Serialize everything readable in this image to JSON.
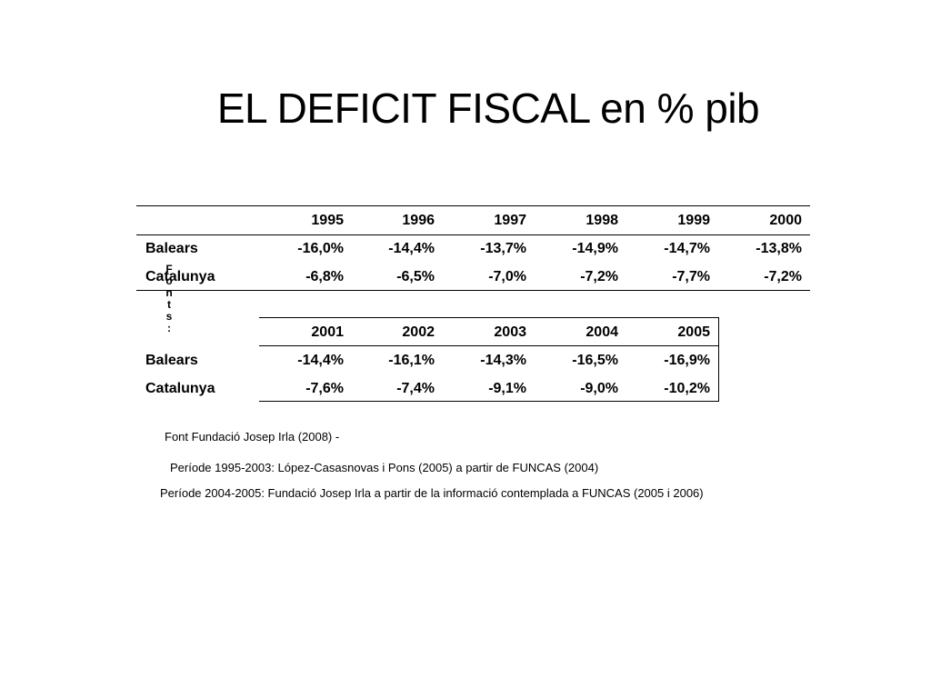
{
  "title": "EL DEFICIT FISCAL en % pib",
  "table1": {
    "years": [
      "1995",
      "1996",
      "1997",
      "1998",
      "1999",
      "2000"
    ],
    "rows": [
      {
        "label": "Balears",
        "values": [
          "-16,0%",
          "-14,4%",
          "-13,7%",
          "-14,9%",
          "-14,7%",
          "-13,8%"
        ]
      },
      {
        "label": "Catalunya",
        "values": [
          "-6,8%",
          "-6,5%",
          "-7,0%",
          "-7,2%",
          "-7,7%",
          "-7,2%"
        ]
      }
    ]
  },
  "table2": {
    "years": [
      "2001",
      "2002",
      "2003",
      "2004",
      "2005"
    ],
    "rows": [
      {
        "label": "Balears",
        "values": [
          "-14,4%",
          "-16,1%",
          "-14,3%",
          "-16,5%",
          "-16,9%"
        ]
      },
      {
        "label": "Catalunya",
        "values": [
          "-7,6%",
          "-7,4%",
          "-9,1%",
          "-9,0%",
          "-10,2%"
        ]
      }
    ]
  },
  "vertical_text": [
    "F",
    "o",
    "n",
    "t",
    "s",
    ":"
  ],
  "notes": {
    "font": "Font  Fundació Josep Irla (2008)   -",
    "period1": "Període 1995-2003: López-Casasnovas i Pons (2005) a partir de FUNCAS (2004)",
    "period2": "Període 2004-2005: Fundació Josep Irla a partir de la informació contemplada a FUNCAS (2005 i 2006)"
  }
}
